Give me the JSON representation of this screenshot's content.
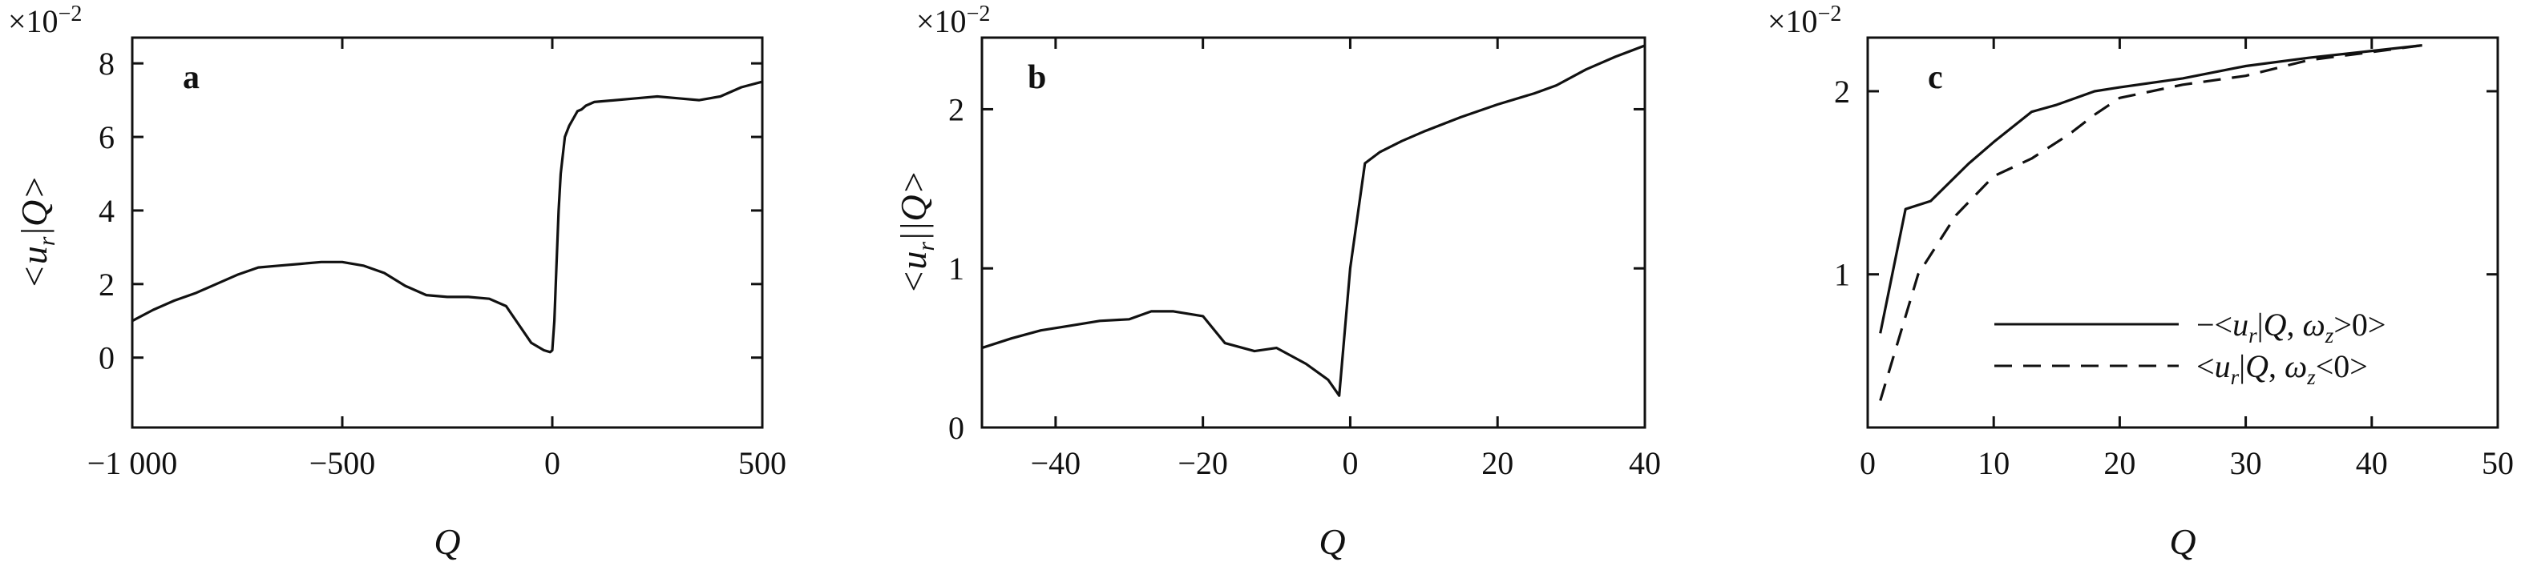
{
  "chart_data": [
    {
      "type": "line",
      "panel": "a",
      "multiplier": "×10−2",
      "xlabel": "Q",
      "ylabel": "<ur|Q>",
      "xlim": [
        -1000,
        500
      ],
      "ylim": [
        -1.9,
        8.7
      ],
      "xticks": [
        -1000,
        -500,
        0,
        500
      ],
      "xtick_labels": [
        "−1 000",
        "−500",
        "0",
        "500"
      ],
      "yticks": [
        0,
        2,
        4,
        6,
        8
      ],
      "ytick_labels": [
        "0",
        "2",
        "4",
        "6",
        "8"
      ],
      "grid": false,
      "series": [
        {
          "style": "solid",
          "x": [
            -1000,
            -950,
            -900,
            -850,
            -800,
            -750,
            -700,
            -650,
            -600,
            -550,
            -500,
            -450,
            -400,
            -350,
            -300,
            -250,
            -200,
            -150,
            -110,
            -80,
            -50,
            -20,
            -5,
            0,
            5,
            10,
            15,
            20,
            25,
            30,
            40,
            50,
            60,
            70,
            80,
            100,
            150,
            200,
            250,
            300,
            350,
            400,
            450,
            500
          ],
          "y": [
            1.0,
            1.3,
            1.55,
            1.75,
            2.0,
            2.25,
            2.45,
            2.5,
            2.55,
            2.6,
            2.6,
            2.5,
            2.3,
            1.95,
            1.7,
            1.65,
            1.65,
            1.6,
            1.4,
            0.9,
            0.4,
            0.2,
            0.15,
            0.2,
            1.0,
            2.5,
            4.0,
            5.0,
            5.5,
            6.0,
            6.3,
            6.5,
            6.7,
            6.75,
            6.85,
            6.95,
            7.0,
            7.05,
            7.1,
            7.05,
            7.0,
            7.1,
            7.35,
            7.5
          ]
        }
      ]
    },
    {
      "type": "line",
      "panel": "b",
      "multiplier": "×10−2",
      "xlabel": "Q",
      "ylabel": "<ur||Q>",
      "xlim": [
        -50,
        40
      ],
      "ylim": [
        0,
        2.45
      ],
      "xticks": [
        -40,
        -20,
        0,
        20,
        40
      ],
      "xtick_labels": [
        "−40",
        "−20",
        "0",
        "20",
        "40"
      ],
      "yticks": [
        0,
        1,
        2
      ],
      "ytick_labels": [
        "0",
        "1",
        "2"
      ],
      "grid": false,
      "series": [
        {
          "style": "solid",
          "x": [
            -50,
            -46,
            -42,
            -38,
            -34,
            -30,
            -27,
            -24,
            -20,
            -17,
            -13,
            -10,
            -6,
            -3,
            -1.5,
            0,
            2,
            4,
            7,
            10,
            15,
            20,
            25,
            28,
            32,
            36,
            40
          ],
          "y": [
            0.5,
            0.56,
            0.61,
            0.64,
            0.67,
            0.68,
            0.73,
            0.73,
            0.7,
            0.53,
            0.48,
            0.5,
            0.4,
            0.3,
            0.2,
            1.0,
            1.66,
            1.73,
            1.8,
            1.86,
            1.95,
            2.03,
            2.1,
            2.15,
            2.25,
            2.33,
            2.4
          ]
        }
      ]
    },
    {
      "type": "line",
      "panel": "c",
      "multiplier": "×10−2",
      "xlabel": "Q",
      "ylabel": "",
      "xlim": [
        0,
        50
      ],
      "ylim": [
        0.56,
        2.45
      ],
      "yscale": "log",
      "xticks": [
        0,
        10,
        20,
        30,
        40,
        50
      ],
      "xtick_labels": [
        "0",
        "10",
        "20",
        "30",
        "40",
        "50"
      ],
      "yticks": [
        1,
        2
      ],
      "ytick_labels": [
        "1",
        "2"
      ],
      "grid": false,
      "legend_position": "center-right",
      "legend": [
        "−<ur|Q, ωz>0>",
        "<ur|Q, ωz<0>"
      ],
      "series": [
        {
          "name": "−<ur|Q, ωz>0>",
          "style": "solid",
          "x": [
            1,
            3,
            5,
            8,
            10,
            13,
            15,
            18,
            20,
            25,
            30,
            35,
            40,
            44
          ],
          "y": [
            0.8,
            1.28,
            1.32,
            1.52,
            1.65,
            1.85,
            1.9,
            2.0,
            2.03,
            2.1,
            2.2,
            2.27,
            2.33,
            2.38
          ]
        },
        {
          "name": "<ur|Q, ωz<0>",
          "style": "dashed",
          "x": [
            1,
            4,
            7,
            10,
            13,
            16,
            18,
            20,
            25,
            30,
            35,
            40,
            44
          ],
          "y": [
            0.62,
            1.0,
            1.25,
            1.45,
            1.55,
            1.7,
            1.83,
            1.95,
            2.05,
            2.12,
            2.25,
            2.32,
            2.38
          ]
        }
      ]
    }
  ]
}
